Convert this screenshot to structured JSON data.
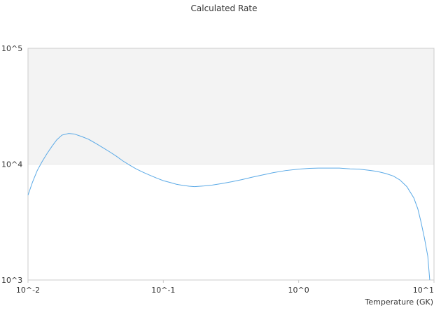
{
  "chart_data": {
    "type": "line",
    "title": "Calculated Rate",
    "xlabel": "Temperature (GK)",
    "ylabel": "",
    "x_scale": "log",
    "y_scale": "log",
    "xlim": [
      0.01,
      10
    ],
    "ylim": [
      1000,
      100000
    ],
    "x_ticks": [
      {
        "value": 0.01,
        "label": "10^-2"
      },
      {
        "value": 0.1,
        "label": "10^-1"
      },
      {
        "value": 1,
        "label": "10^0"
      },
      {
        "value": 10,
        "label": "10^1"
      }
    ],
    "y_ticks": [
      {
        "value": 1000,
        "label": "10^3"
      },
      {
        "value": 10000,
        "label": "10^4"
      },
      {
        "value": 100000,
        "label": "10^5"
      }
    ],
    "band": {
      "from": 10000,
      "to": 100000,
      "color": "#f3f3f3"
    },
    "grid": false,
    "legend": "none",
    "colors": {
      "line": "#5aa9e6",
      "border": "#cccccc",
      "text": "#333333"
    },
    "series": [
      {
        "name": "",
        "x": [
          0.01,
          0.0108,
          0.0117,
          0.0127,
          0.0138,
          0.015,
          0.0163,
          0.0178,
          0.02,
          0.022,
          0.025,
          0.028,
          0.032,
          0.036,
          0.04,
          0.045,
          0.05,
          0.056,
          0.063,
          0.071,
          0.08,
          0.09,
          0.1,
          0.112,
          0.125,
          0.14,
          0.155,
          0.17,
          0.2,
          0.23,
          0.27,
          0.32,
          0.38,
          0.45,
          0.55,
          0.65,
          0.8,
          1.0,
          1.2,
          1.4,
          1.7,
          2.0,
          2.4,
          2.8,
          3.3,
          3.8,
          4.4,
          5.0,
          5.6,
          6.3,
          7.1,
          7.6,
          8.0,
          8.5,
          9.0,
          9.3
        ],
        "y": [
          5400,
          7000,
          8800,
          10500,
          12300,
          14200,
          16200,
          17800,
          18400,
          18200,
          17300,
          16400,
          15000,
          13800,
          12800,
          11700,
          10700,
          9850,
          9100,
          8500,
          8000,
          7550,
          7200,
          6950,
          6700,
          6550,
          6450,
          6400,
          6480,
          6600,
          6800,
          7050,
          7350,
          7700,
          8100,
          8450,
          8800,
          9050,
          9200,
          9250,
          9250,
          9250,
          9100,
          9050,
          8850,
          8650,
          8300,
          7900,
          7300,
          6400,
          5100,
          4100,
          3200,
          2300,
          1600,
          1000
        ]
      }
    ]
  }
}
